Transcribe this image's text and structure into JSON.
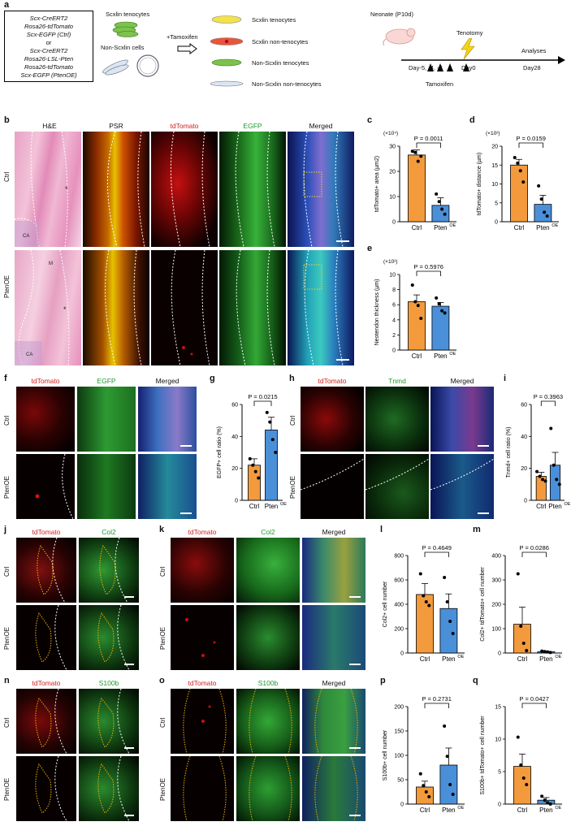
{
  "panels": {
    "a": "a",
    "b": "b",
    "c": "c",
    "d": "d",
    "e": "e",
    "f": "f",
    "g": "g",
    "h": "h",
    "i": "i",
    "j": "j",
    "k": "k",
    "l": "l",
    "m": "m",
    "n": "n",
    "o": "o",
    "p": "p",
    "q": "q"
  },
  "schematic": {
    "genotype_lines": [
      "Scx-CreERT2",
      "Rosa26-tdTomato",
      "Scx-EGFP (Ctrl)",
      "or",
      "Scx-CreERT2",
      "Rosa26-LSL-Pten",
      "Rosa26-tdTomato",
      "Scx-EGFP (PtenOE)"
    ],
    "scx_lin_tenocytes": "Scxlin tenocytes",
    "non_scx_lin_cells": "Non-Scxlin cells",
    "tamoxifen": "+Tamoxifen",
    "legend": [
      "Scxlin tenocytes",
      "Scxlin non-tenocytes",
      "Non-Scxlin tenocytes",
      "Non-Scxlin non-tenocytes"
    ],
    "neonate": "Neonate (P10d)",
    "tenotomy": "Tenotomy",
    "analyses": "Analyses",
    "days": [
      "Day-5, -4, -3",
      "Day0",
      "Day28"
    ],
    "tamoxifen_label": "Tamoxifen",
    "colors": {
      "yellow": "#f4e24a",
      "red": "#e8553a",
      "green": "#7cc24c",
      "blue": "#c9d9ee",
      "arrow": "#000000",
      "bolt": "#f5d318"
    }
  },
  "channels": {
    "he": "H&E",
    "psr": "PSR",
    "tdtomato": "tdTomato",
    "egfp": "EGFP",
    "merged": "Merged",
    "tnmd": "Tnmd",
    "col2": "Col2",
    "s100b": "S100b"
  },
  "rows": {
    "ctrl": "Ctrl",
    "pten": "PtenOE"
  },
  "tissue_labels": {
    "ca": "CA",
    "ctrl_star": "*",
    "pten_star": "*",
    "ms": "M"
  },
  "charts": {
    "c": {
      "ylabel": "tdTomato+ area (µm2)",
      "scale": "(×10⁴)",
      "p": "P = 0.0011",
      "ylim": [
        0,
        30
      ],
      "ticks": [
        0,
        10,
        20,
        30
      ],
      "ctrl_mean": 26.5,
      "pten_mean": 6.5,
      "ctrl_err": 2.0,
      "pten_err": 3.0,
      "ctrl_pts": [
        28.0,
        27.5,
        24.0,
        26.0
      ],
      "pten_pts": [
        11.0,
        8.0,
        5.0,
        3.0
      ]
    },
    "d": {
      "ylabel": "tdTomato+ distance (µm)",
      "scale": "(×10²)",
      "p": "P = 0.0159",
      "ylim": [
        0,
        20
      ],
      "ticks": [
        0,
        5,
        10,
        15,
        20
      ],
      "ctrl_mean": 15.0,
      "pten_mean": 4.6,
      "ctrl_err": 1.5,
      "pten_err": 2.4,
      "ctrl_pts": [
        17.0,
        15.5,
        13.5,
        10.5
      ],
      "pten_pts": [
        9.5,
        6.0,
        2.5,
        1.5
      ]
    },
    "e": {
      "ylabel": "Neotendon thickness (µm)",
      "scale": "(×10²)",
      "p": "P = 0.5976",
      "ylim": [
        0,
        10
      ],
      "ticks": [
        0,
        2,
        4,
        6,
        8,
        10
      ],
      "ctrl_mean": 6.4,
      "pten_mean": 5.8,
      "ctrl_err": 0.9,
      "pten_err": 0.5,
      "ctrl_pts": [
        8.6,
        6.4,
        5.9,
        4.2
      ],
      "pten_pts": [
        6.9,
        6.1,
        5.2,
        4.9
      ]
    },
    "g": {
      "ylabel": "EGFP+ cell ratio (%)",
      "scale": "",
      "p": "P = 0.0215",
      "ylim": [
        0,
        60
      ],
      "ticks": [
        0,
        20,
        40,
        60
      ],
      "ctrl_mean": 22,
      "pten_mean": 44,
      "ctrl_err": 4,
      "pten_err": 8,
      "ctrl_pts": [
        26,
        22,
        18,
        14
      ],
      "pten_pts": [
        55,
        49,
        38,
        30
      ]
    },
    "i": {
      "ylabel": "Tnmd+ cell ratio (%)",
      "scale": "",
      "p": "P = 0.3963",
      "ylim": [
        0,
        60
      ],
      "ticks": [
        0,
        20,
        40,
        60
      ],
      "ctrl_mean": 15,
      "pten_mean": 22,
      "ctrl_err": 2.5,
      "pten_err": 8,
      "ctrl_pts": [
        18,
        15,
        13,
        12
      ],
      "pten_pts": [
        45,
        22,
        13,
        10
      ]
    },
    "l": {
      "ylabel": "Col2+ cell number",
      "scale": "",
      "p": "P = 0.4649",
      "ylim": [
        0,
        800
      ],
      "ticks": [
        0,
        200,
        400,
        600,
        800
      ],
      "ctrl_mean": 480,
      "pten_mean": 365,
      "ctrl_err": 90,
      "pten_err": 120,
      "ctrl_pts": [
        650,
        470,
        420,
        390
      ],
      "pten_pts": [
        620,
        420,
        260,
        160
      ]
    },
    "m": {
      "ylabel": "Col2+ tdTomato+ cell number",
      "scale": "",
      "p": "P = 0.0286",
      "ylim": [
        0,
        400
      ],
      "ticks": [
        0,
        100,
        200,
        300,
        400
      ],
      "ctrl_mean": 118,
      "pten_mean": 5,
      "ctrl_err": 70,
      "pten_err": 2,
      "ctrl_pts": [
        325,
        110,
        40,
        10
      ],
      "pten_pts": [
        8,
        6,
        4,
        2
      ]
    },
    "p": {
      "ylabel": "S100b+ cell number",
      "scale": "",
      "p": "P = 0.2731",
      "ylim": [
        0,
        200
      ],
      "ticks": [
        0,
        50,
        100,
        150,
        200
      ],
      "ctrl_mean": 35,
      "pten_mean": 80,
      "ctrl_err": 12,
      "pten_err": 35,
      "ctrl_pts": [
        62,
        38,
        25,
        15
      ],
      "pten_pts": [
        160,
        98,
        40,
        20
      ]
    },
    "q": {
      "ylabel": "S100b+ tdTomato+ cell number",
      "scale": "",
      "p": "P = 0.0427",
      "ylim": [
        0,
        15
      ],
      "ticks": [
        0,
        5,
        10,
        15
      ],
      "ctrl_mean": 5.8,
      "pten_mean": 0.6,
      "ctrl_err": 1.9,
      "pten_err": 0.4,
      "ctrl_pts": [
        10.3,
        6.0,
        4.0,
        3.0
      ],
      "pten_pts": [
        1.2,
        0.6,
        0.2,
        0.0
      ]
    }
  },
  "chart_data": [
    {
      "type": "bar",
      "panel": "c",
      "categories": [
        "Ctrl",
        "PtenOE"
      ],
      "values": [
        26.5,
        6.5
      ],
      "ylabel": "tdTomato+ area (µm2)",
      "ylim": [
        0,
        30
      ]
    },
    {
      "type": "bar",
      "panel": "d",
      "categories": [
        "Ctrl",
        "PtenOE"
      ],
      "values": [
        15.0,
        4.6
      ],
      "ylabel": "tdTomato+ distance (µm)",
      "ylim": [
        0,
        20
      ]
    },
    {
      "type": "bar",
      "panel": "e",
      "categories": [
        "Ctrl",
        "PtenOE"
      ],
      "values": [
        6.4,
        5.8
      ],
      "ylabel": "Neotendon thickness (µm)",
      "ylim": [
        0,
        10
      ]
    },
    {
      "type": "bar",
      "panel": "g",
      "categories": [
        "Ctrl",
        "PtenOE"
      ],
      "values": [
        22,
        44
      ],
      "ylabel": "EGFP+ cell ratio (%)",
      "ylim": [
        0,
        60
      ]
    },
    {
      "type": "bar",
      "panel": "i",
      "categories": [
        "Ctrl",
        "PtenOE"
      ],
      "values": [
        15,
        22
      ],
      "ylabel": "Tnmd+ cell ratio (%)",
      "ylim": [
        0,
        60
      ]
    },
    {
      "type": "bar",
      "panel": "l",
      "categories": [
        "Ctrl",
        "PtenOE"
      ],
      "values": [
        480,
        365
      ],
      "ylabel": "Col2+ cell number",
      "ylim": [
        0,
        800
      ]
    },
    {
      "type": "bar",
      "panel": "m",
      "categories": [
        "Ctrl",
        "PtenOE"
      ],
      "values": [
        118,
        5
      ],
      "ylabel": "Col2+ tdTomato+ cell number",
      "ylim": [
        0,
        400
      ]
    },
    {
      "type": "bar",
      "panel": "p",
      "categories": [
        "Ctrl",
        "PtenOE"
      ],
      "values": [
        35,
        80
      ],
      "ylabel": "S100b+ cell number",
      "ylim": [
        0,
        200
      ]
    },
    {
      "type": "bar",
      "panel": "q",
      "categories": [
        "Ctrl",
        "PtenOE"
      ],
      "values": [
        5.8,
        0.6
      ],
      "ylabel": "S100b+ tdTomato+ cell number",
      "ylim": [
        0,
        15
      ]
    }
  ],
  "bar_colors": {
    "ctrl": "#f39a3d",
    "pten": "#4a90d9"
  },
  "x_labels": {
    "ctrl": "Ctrl",
    "pten": "Pten",
    "sup": "OE"
  }
}
